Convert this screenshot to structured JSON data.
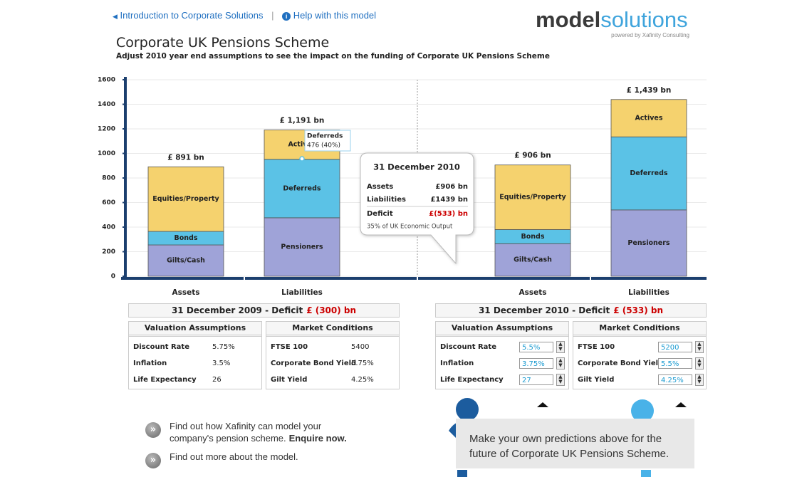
{
  "nav": {
    "intro_link": "Introduction to Corporate Solutions",
    "help_link": "Help with this model"
  },
  "brand": {
    "logo_bold": "model",
    "logo_light": "solutions",
    "tagline": "powered by Xafinity Consulting"
  },
  "header": {
    "title": "Corporate UK Pensions Scheme",
    "subtitle": "Adjust 2010 year end assumptions to see the impact on the funding of Corporate UK Pensions Scheme"
  },
  "chart_data": {
    "type": "stacked-bar",
    "ylim": [
      0,
      1600
    ],
    "yticks": [
      0,
      200,
      400,
      600,
      800,
      1000,
      1200,
      1400,
      1600
    ],
    "grid": true,
    "categories": [
      "Assets",
      "Liabilities",
      "Assets",
      "Liabilities"
    ],
    "bars": [
      {
        "total": 891,
        "total_label": "£ 891 bn",
        "segments": [
          {
            "name": "Gilts/Cash",
            "value": 255,
            "color": "#9fa3d8"
          },
          {
            "name": "Bonds",
            "value": 110,
            "color": "#5bc2e6"
          },
          {
            "name": "Equities/Property",
            "value": 526,
            "color": "#f5d26e"
          }
        ]
      },
      {
        "total": 1191,
        "total_label": "£ 1,191 bn",
        "segments": [
          {
            "name": "Pensioners",
            "value": 476,
            "color": "#9fa3d8"
          },
          {
            "name": "Deferreds",
            "value": 476,
            "color": "#5bc2e6"
          },
          {
            "name": "Actives",
            "value": 239,
            "color": "#f5d26e"
          }
        ]
      },
      {
        "total": 906,
        "total_label": "£ 906 bn",
        "segments": [
          {
            "name": "Gilts/Cash",
            "value": 265,
            "color": "#9fa3d8"
          },
          {
            "name": "Bonds",
            "value": 115,
            "color": "#5bc2e6"
          },
          {
            "name": "Equities/Property",
            "value": 526,
            "color": "#f5d26e"
          }
        ]
      },
      {
        "total": 1439,
        "total_label": "£ 1,439 bn",
        "segments": [
          {
            "name": "Pensioners",
            "value": 540,
            "color": "#9fa3d8"
          },
          {
            "name": "Deferreds",
            "value": 595,
            "color": "#5bc2e6"
          },
          {
            "name": "Actives",
            "value": 304,
            "color": "#f5d26e"
          }
        ]
      }
    ],
    "tooltip": {
      "title": "Deferreds",
      "text": "476 (40%)"
    },
    "callout": {
      "date": "31 December 2010",
      "rows": [
        {
          "label": "Assets",
          "value": "£906 bn"
        },
        {
          "label": "Liabilities",
          "value": "£1439 bn"
        }
      ],
      "deficit_label": "Deficit",
      "deficit_value": "£(533) bn",
      "note": "35% of UK Economic Output"
    }
  },
  "panels": [
    {
      "heading": "31 December 2009 - Deficit",
      "deficit": "£ (300) bn",
      "editable": false,
      "valuation": {
        "title": "Valuation Assumptions",
        "rows": [
          [
            "Discount Rate",
            "5.75%"
          ],
          [
            "Inflation",
            "3.5%"
          ],
          [
            "Life Expectancy",
            "26"
          ]
        ]
      },
      "market": {
        "title": "Market Conditions",
        "rows": [
          [
            "FTSE 100",
            "5400"
          ],
          [
            "Corporate Bond Yield",
            "5.75%"
          ],
          [
            "Gilt Yield",
            "4.25%"
          ]
        ]
      }
    },
    {
      "heading": "31 December 2010 - Deficit",
      "deficit": "£ (533) bn",
      "editable": true,
      "valuation": {
        "title": "Valuation Assumptions",
        "rows": [
          [
            "Discount Rate",
            "5.5%"
          ],
          [
            "Inflation",
            "3.75%"
          ],
          [
            "Life Expectancy",
            "27"
          ]
        ]
      },
      "market": {
        "title": "Market Conditions",
        "rows": [
          [
            "FTSE 100",
            "5200"
          ],
          [
            "Corporate Bond Yield",
            "5.5%"
          ],
          [
            "Gilt Yield",
            "4.25%"
          ]
        ]
      }
    }
  ],
  "links": [
    {
      "text": "Find out how Xafinity can model your company's pension scheme.",
      "bold": "Enquire now."
    },
    {
      "text": "Find out more about the model."
    }
  ],
  "banner": {
    "line1": "Make your own predictions above for the",
    "line2": "future of Corporate UK Pensions Scheme."
  }
}
